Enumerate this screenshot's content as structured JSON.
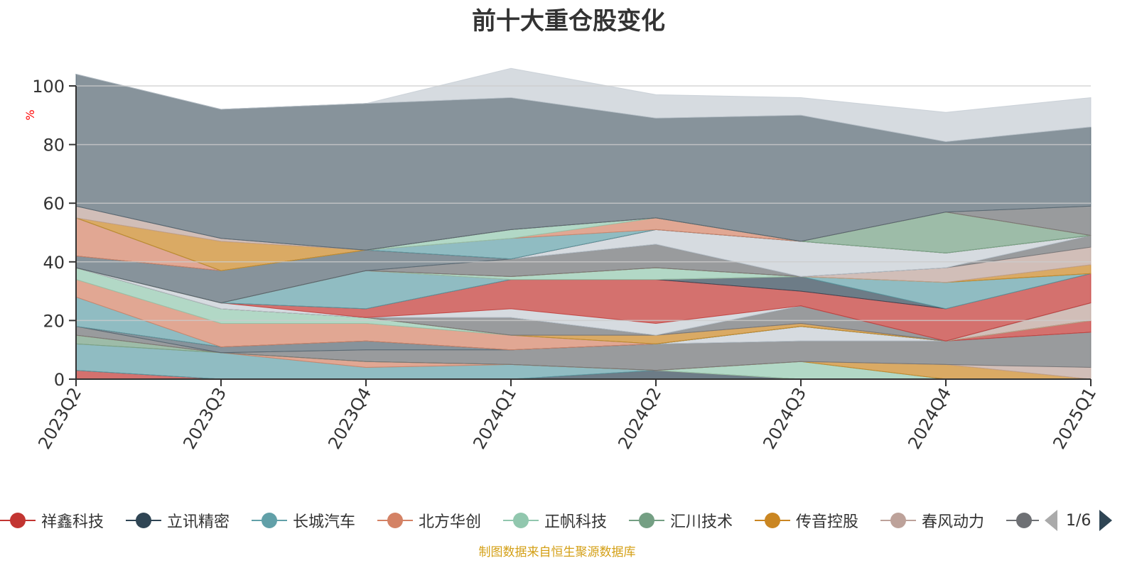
{
  "chart_data": {
    "type": "area",
    "title": "前十大重仓股变化",
    "ylabel": "%",
    "ylim": [
      0,
      100
    ],
    "yticks": [
      0,
      20,
      40,
      60,
      80,
      100
    ],
    "stacked": true,
    "grid": true,
    "categories": [
      "2023Q2",
      "2023Q3",
      "2023Q4",
      "2024Q1",
      "2024Q2",
      "2024Q3",
      "2024Q4",
      "2025Q1"
    ],
    "series": [
      {
        "name": "祥鑫科技",
        "color": "#c23531",
        "values": [
          3,
          0,
          0,
          0,
          0,
          0,
          0,
          0
        ]
      },
      {
        "name": "立讯精密",
        "color": "#2f4554",
        "values": [
          0,
          0,
          0,
          0,
          3,
          0,
          0,
          0
        ]
      },
      {
        "name": "长城汽车",
        "color": "#61a0a8",
        "values": [
          9,
          9,
          4,
          5,
          0,
          0,
          0,
          0
        ]
      },
      {
        "name": "北方华创",
        "color": "#d48265",
        "values": [
          0,
          0,
          2,
          0,
          0,
          0,
          0,
          0
        ]
      },
      {
        "name": "正帆科技",
        "color": "#91c7ae",
        "values": [
          0,
          0,
          0,
          0,
          0,
          6,
          0,
          0
        ]
      },
      {
        "name": "汇川技术",
        "color": "#749f83",
        "values": [
          3,
          0,
          0,
          0,
          0,
          0,
          0,
          0
        ]
      },
      {
        "name": "传音控股",
        "color": "#ca8622",
        "values": [
          0,
          0,
          0,
          0,
          0,
          0,
          5,
          0
        ]
      },
      {
        "name": "春风动力",
        "color": "#bda29a",
        "values": [
          0,
          0,
          0,
          0,
          0,
          0,
          0,
          4
        ]
      },
      {
        "name": "",
        "color": "#6e7074",
        "values": [
          3,
          0,
          4,
          5,
          9,
          7,
          8,
          12
        ]
      },
      {
        "name": "",
        "color": "#546570",
        "values": [
          0,
          2,
          3,
          0,
          0,
          0,
          0,
          0
        ]
      },
      {
        "name": "",
        "color": "#c4ccd3",
        "values": [
          0,
          0,
          0,
          0,
          0,
          5,
          0,
          0
        ]
      },
      {
        "name": "",
        "color": "#c23531",
        "values": [
          0,
          0,
          0,
          0,
          0,
          0,
          0,
          4
        ]
      },
      {
        "name": "",
        "color": "#2f4554",
        "values": [
          0,
          0,
          0,
          0,
          0,
          0,
          0,
          0
        ]
      },
      {
        "name": "",
        "color": "#61a0a8",
        "values": [
          10,
          0,
          0,
          0,
          0,
          0,
          0,
          0
        ]
      },
      {
        "name": "",
        "color": "#d48265",
        "values": [
          6,
          8,
          6,
          5,
          0,
          0,
          0,
          0
        ]
      },
      {
        "name": "",
        "color": "#91c7ae",
        "values": [
          4,
          5,
          2,
          0,
          0,
          0,
          0,
          0
        ]
      },
      {
        "name": "",
        "color": "#749f83",
        "values": [
          0,
          0,
          0,
          0,
          0,
          0,
          0,
          0
        ]
      },
      {
        "name": "",
        "color": "#ca8622",
        "values": [
          0,
          0,
          0,
          0,
          3,
          1,
          0,
          0
        ]
      },
      {
        "name": "",
        "color": "#bda29a",
        "values": [
          0,
          0,
          0,
          0,
          0,
          0,
          0,
          6
        ]
      },
      {
        "name": "",
        "color": "#6e7074",
        "values": [
          0,
          0,
          0,
          6,
          0,
          6,
          0,
          0
        ]
      },
      {
        "name": "",
        "color": "#546570",
        "values": [
          0,
          0,
          0,
          0,
          0,
          0,
          0,
          0
        ]
      },
      {
        "name": "",
        "color": "#c4ccd3",
        "values": [
          0,
          2,
          0,
          3,
          4,
          0,
          0,
          0
        ]
      },
      {
        "name": "",
        "color": "#c23531",
        "values": [
          0,
          0,
          3,
          10,
          15,
          5,
          11,
          10
        ]
      },
      {
        "name": "",
        "color": "#2f4554",
        "values": [
          0,
          0,
          0,
          0,
          0,
          5,
          0,
          0
        ]
      },
      {
        "name": "",
        "color": "#61a0a8",
        "values": [
          0,
          0,
          13,
          0,
          0,
          0,
          9,
          0
        ]
      },
      {
        "name": "",
        "color": "#d48265",
        "values": [
          0,
          0,
          0,
          0,
          0,
          0,
          0,
          0
        ]
      },
      {
        "name": "",
        "color": "#91c7ae",
        "values": [
          0,
          0,
          0,
          1,
          4,
          0,
          0,
          0
        ]
      },
      {
        "name": "",
        "color": "#749f83",
        "values": [
          0,
          0,
          0,
          0,
          0,
          0,
          0,
          0
        ]
      },
      {
        "name": "",
        "color": "#ca8622",
        "values": [
          0,
          0,
          0,
          0,
          0,
          0,
          0,
          3
        ]
      },
      {
        "name": "",
        "color": "#bda29a",
        "values": [
          0,
          0,
          0,
          0,
          0,
          0,
          5,
          6
        ]
      },
      {
        "name": "",
        "color": "#6e7074",
        "values": [
          0,
          0,
          0,
          6,
          8,
          0,
          0,
          4
        ]
      },
      {
        "name": "",
        "color": "#546570",
        "values": [
          4,
          11,
          7,
          0,
          0,
          0,
          0,
          0
        ]
      },
      {
        "name": "",
        "color": "#c4ccd3",
        "values": [
          0,
          0,
          0,
          0,
          5,
          12,
          5,
          0
        ]
      },
      {
        "name": "",
        "color": "#c23531",
        "values": [
          0,
          0,
          0,
          0,
          0,
          0,
          0,
          0
        ]
      },
      {
        "name": "",
        "color": "#2f4554",
        "values": [
          0,
          0,
          0,
          0,
          0,
          0,
          0,
          0
        ]
      },
      {
        "name": "",
        "color": "#61a0a8",
        "values": [
          0,
          0,
          0,
          7,
          0,
          0,
          0,
          0
        ]
      },
      {
        "name": "",
        "color": "#d48265",
        "values": [
          13,
          0,
          0,
          0,
          4,
          0,
          0,
          0
        ]
      },
      {
        "name": "",
        "color": "#91c7ae",
        "values": [
          0,
          0,
          0,
          3,
          0,
          0,
          0,
          0
        ]
      },
      {
        "name": "",
        "color": "#749f83",
        "values": [
          0,
          0,
          0,
          0,
          0,
          0,
          14,
          0
        ]
      },
      {
        "name": "",
        "color": "#ca8622",
        "values": [
          0,
          10,
          0,
          0,
          0,
          0,
          0,
          0
        ]
      },
      {
        "name": "",
        "color": "#bda29a",
        "values": [
          4,
          1,
          0,
          0,
          0,
          0,
          0,
          0
        ]
      },
      {
        "name": "",
        "color": "#6e7074",
        "values": [
          0,
          0,
          0,
          0,
          0,
          0,
          0,
          10
        ]
      },
      {
        "name": "",
        "color": "#546570",
        "values": [
          45,
          44,
          50,
          45,
          34,
          43,
          24,
          27
        ]
      },
      {
        "name": "",
        "color": "#c4ccd3",
        "values": [
          0,
          0,
          0,
          10,
          8,
          6,
          10,
          10
        ]
      }
    ]
  },
  "legend": {
    "items": [
      {
        "name": "祥鑫科技",
        "color": "#c23531"
      },
      {
        "name": "立讯精密",
        "color": "#2f4554"
      },
      {
        "name": "长城汽车",
        "color": "#61a0a8"
      },
      {
        "name": "北方华创",
        "color": "#d48265"
      },
      {
        "name": "正帆科技",
        "color": "#91c7ae"
      },
      {
        "name": "汇川技术",
        "color": "#749f83"
      },
      {
        "name": "传音控股",
        "color": "#ca8622"
      },
      {
        "name": "春风动力",
        "color": "#bda29a"
      },
      {
        "name": "",
        "color": "#6e7074"
      }
    ],
    "page": "1/6"
  },
  "source_note": "制图数据来自恒生聚源数据库"
}
